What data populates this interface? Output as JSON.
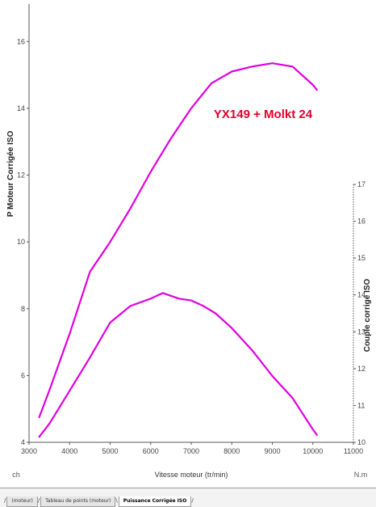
{
  "chart_data": {
    "type": "line",
    "title": "YX149 + Molkt 24",
    "xlabel": "Vitesse moteur (tr/min)",
    "ylabel_left": "P Moteur Corrigée ISO",
    "ylabel_right": "Couple corrigé ISO",
    "unit_left": "ch",
    "unit_right": "N.m",
    "xlim": [
      3000,
      11000
    ],
    "ylim_left": [
      4,
      17
    ],
    "ylim_right": [
      10,
      17
    ],
    "x_ticks": [
      "3000",
      "4000",
      "5000",
      "6000",
      "7000",
      "8000",
      "9000",
      "10000",
      "11000"
    ],
    "y_left_ticks": [
      "4",
      "6",
      "8",
      "10",
      "12",
      "14",
      "16"
    ],
    "y_right_ticks": [
      "10",
      "11",
      "12",
      "13",
      "14",
      "15",
      "16",
      "17"
    ],
    "series": [
      {
        "axis": "left",
        "color": "#e000e0",
        "x": [
          3250,
          3500,
          4000,
          4500,
          5000,
          5500,
          6000,
          6500,
          7000,
          7500,
          8000,
          8500,
          9000,
          9500,
          10000,
          10100
        ],
        "y": [
          4.75,
          5.55,
          7.25,
          9.1,
          10.0,
          11.0,
          12.1,
          13.1,
          14.0,
          14.75,
          15.1,
          15.25,
          15.35,
          15.25,
          14.7,
          14.55
        ]
      },
      {
        "axis": "right",
        "color": "#e000e0",
        "x": [
          3250,
          3500,
          4000,
          4500,
          5000,
          5500,
          6000,
          6300,
          6700,
          7000,
          7300,
          7600,
          8000,
          8500,
          9000,
          9500,
          10000,
          10100
        ],
        "y": [
          10.15,
          10.5,
          11.4,
          12.3,
          13.25,
          13.7,
          13.9,
          14.05,
          13.9,
          13.85,
          13.7,
          13.5,
          13.1,
          12.5,
          11.8,
          11.2,
          10.35,
          10.2
        ]
      }
    ],
    "title_color": "#e0002a",
    "grid": false
  },
  "tabs": [
    {
      "label": "(moteur)",
      "active": false
    },
    {
      "label": "Tableau de points (moteur)",
      "active": false
    },
    {
      "label": "Puissance Corrigée ISO",
      "active": true
    }
  ]
}
